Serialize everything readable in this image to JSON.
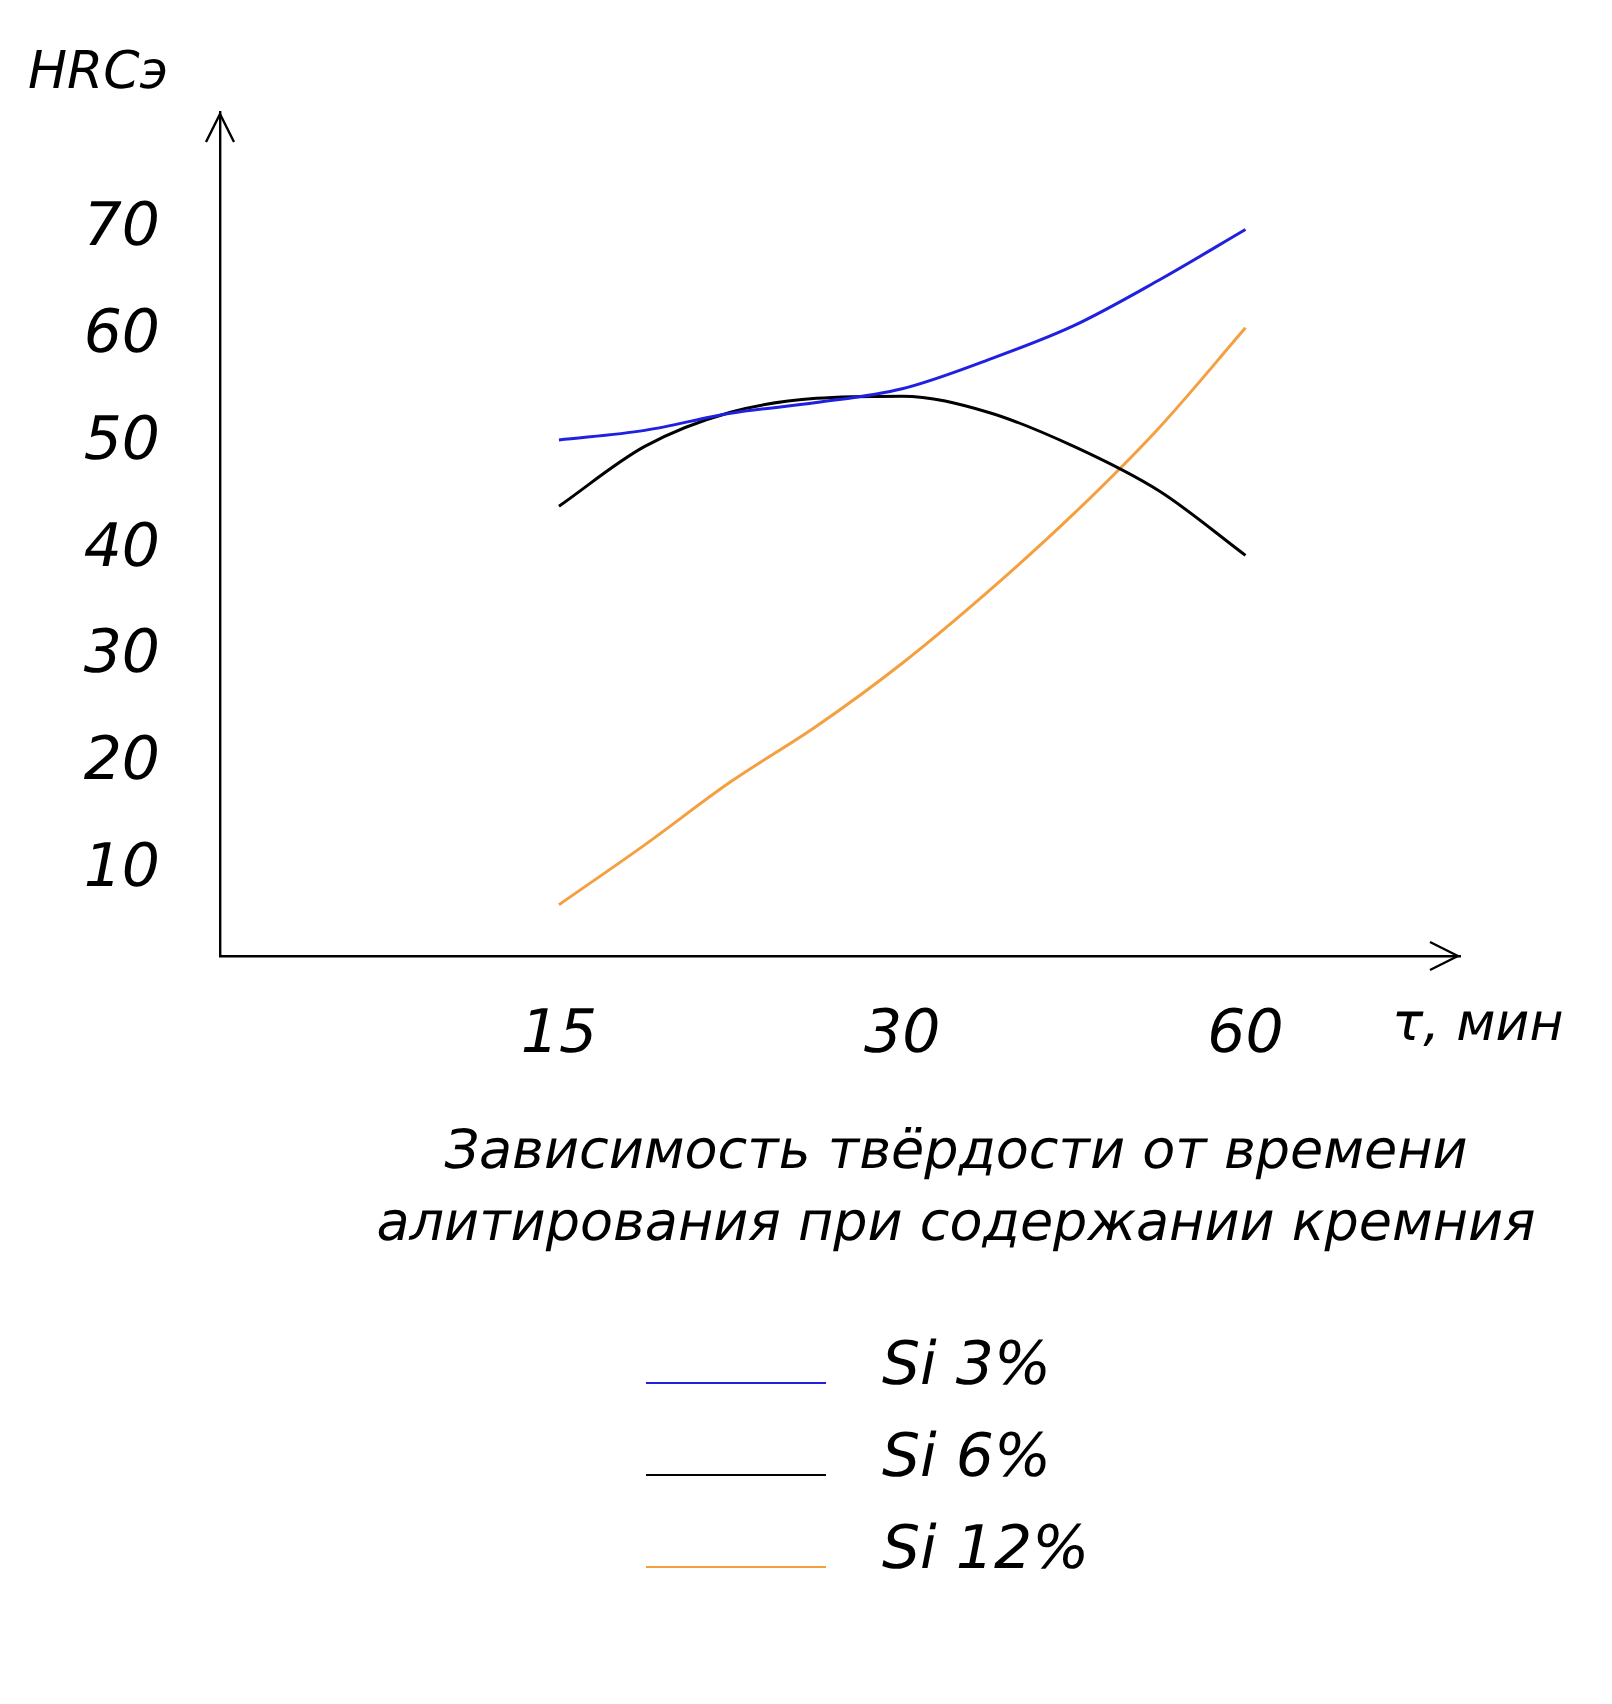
{
  "chart_data": {
    "type": "line",
    "title": "Зависимость твёрдости от времени алитирования при содержании кремния",
    "xlabel": "τ, мин",
    "ylabel": "HRCэ",
    "categories": [
      "15",
      null,
      null,
      null,
      "30",
      null,
      null,
      null,
      "60"
    ],
    "series": [
      {
        "name": "Si 3%",
        "color": "#2020e0",
        "values": [
          50.3,
          51.2,
          52.8,
          53.8,
          55.1,
          57.8,
          61,
          65.3,
          70
        ]
      },
      {
        "name": "Si 6%",
        "color": "#000000",
        "values": [
          44.1,
          49.7,
          52.9,
          54.2,
          54.4,
          52.9,
          49.7,
          45.5,
          39.5
        ]
      },
      {
        "name": "Si 12%",
        "color": "#f5a040",
        "values": [
          6.8,
          12.4,
          18.3,
          23.5,
          29.4,
          36.1,
          43.4,
          51.5,
          60.8
        ]
      }
    ],
    "ylim": [
      2,
      81
    ],
    "yticks": [
      10,
      20,
      30,
      40,
      50,
      60,
      70
    ],
    "grid": false,
    "legend": "bottom",
    "marker": "none",
    "line_style": "solid"
  }
}
